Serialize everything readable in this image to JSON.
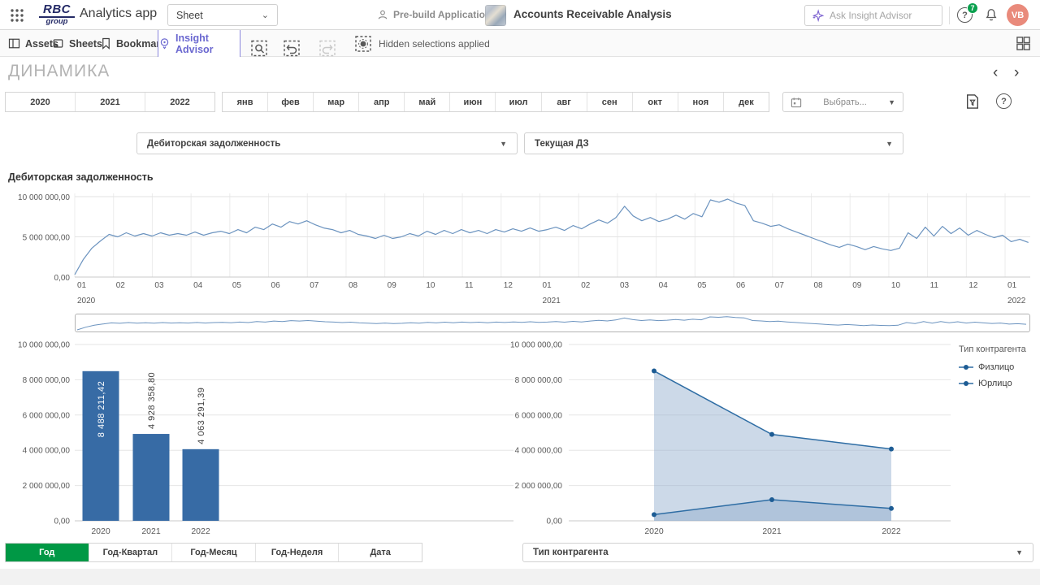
{
  "topbar": {
    "logo_line1": "RBC",
    "logo_line2": "group",
    "app_title": "Analytics app",
    "sheet_selector": "Sheet",
    "prebuild_label": "Pre-build Applications",
    "doc_title": "Accounts Receivable Analysis",
    "more_label": "⋯",
    "ask_placeholder": "Ask Insight Advisor",
    "help_badge": "7",
    "help_label": "?",
    "avatar_initials": "VB"
  },
  "toolbar": {
    "assets": "Assets",
    "sheets": "Sheets",
    "bookmarks": "Bookmarks",
    "insight_advisor": "Insight Advisor",
    "hidden_selections": "Hidden selections applied"
  },
  "sheet": {
    "title": "ДИНАМИКА",
    "years": [
      "2020",
      "2021",
      "2022"
    ],
    "months": [
      "янв",
      "фев",
      "мар",
      "апр",
      "май",
      "июн",
      "июл",
      "авг",
      "сен",
      "окт",
      "ноя",
      "дек"
    ],
    "date_select_label": "Выбрать...",
    "measure_select": "Дебиторская задолженность",
    "measure_select2": "Текущая ДЗ",
    "dimension_tabs": [
      "Год",
      "Год-Квартал",
      "Год-Месяц",
      "Год-Неделя",
      "Дата"
    ],
    "active_tab": "Год",
    "counterparty_select": "Тип контрагента"
  },
  "colors": {
    "accent_green": "#009845",
    "advisor_purple": "#6b68d0",
    "line_blue": "#6b93bf",
    "bar_blue": "#376ba5",
    "area_line_blue": "#2e6da4",
    "area_fill_blue": "#8daacb",
    "avatar_salmon": "#e98a7b",
    "badge_green": "#0aa04e"
  },
  "chart_data": [
    {
      "id": "receivables-daily",
      "type": "line",
      "title": "Дебиторская задолженность",
      "ylabel": "",
      "xlabel": "",
      "ylim": [
        0,
        10000000
      ],
      "grid": true,
      "y_ticks": [
        "0,00",
        "5 000 000,00",
        "10 000 000,00"
      ],
      "x_tick_labels": [
        "01",
        "02",
        "03",
        "04",
        "05",
        "06",
        "07",
        "08",
        "09",
        "10",
        "11",
        "12",
        "01",
        "02",
        "03",
        "04",
        "05",
        "06",
        "07",
        "08",
        "09",
        "10",
        "11",
        "12",
        "01"
      ],
      "year_labels": [
        {
          "label": "2020",
          "month": 0
        },
        {
          "label": "2021",
          "month": 12
        },
        {
          "label": "2022",
          "month": 24
        }
      ],
      "x_months_total": 24.6,
      "values_millions": [
        0.3,
        2.2,
        3.6,
        4.5,
        5.3,
        5.0,
        5.5,
        5.1,
        5.4,
        5.1,
        5.5,
        5.2,
        5.4,
        5.2,
        5.6,
        5.2,
        5.5,
        5.7,
        5.4,
        5.9,
        5.5,
        6.2,
        5.9,
        6.6,
        6.2,
        6.9,
        6.6,
        7.0,
        6.5,
        6.1,
        5.9,
        5.5,
        5.8,
        5.3,
        5.1,
        4.8,
        5.2,
        4.8,
        5.0,
        5.4,
        5.1,
        5.7,
        5.3,
        5.8,
        5.4,
        5.9,
        5.5,
        5.8,
        5.4,
        5.9,
        5.6,
        6.0,
        5.7,
        6.1,
        5.7,
        5.9,
        6.2,
        5.8,
        6.4,
        6.0,
        6.6,
        7.1,
        6.7,
        7.4,
        8.8,
        7.6,
        7.0,
        7.4,
        6.9,
        7.2,
        7.7,
        7.2,
        7.9,
        7.5,
        9.6,
        9.3,
        9.7,
        9.2,
        8.9,
        7.0,
        6.7,
        6.3,
        6.5,
        6.0,
        5.6,
        5.2,
        4.8,
        4.4,
        4.0,
        3.7,
        4.1,
        3.8,
        3.4,
        3.8,
        3.5,
        3.3,
        3.6,
        5.5,
        4.8,
        6.2,
        5.1,
        6.3,
        5.4,
        6.1,
        5.2,
        5.8,
        5.3,
        4.9,
        5.2,
        4.4,
        4.7,
        4.3
      ]
    },
    {
      "id": "receivables-by-year",
      "type": "bar",
      "categories": [
        "2020",
        "2021",
        "2022"
      ],
      "values": [
        8488211.42,
        4928358.8,
        4063291.39
      ],
      "value_labels": [
        "8 488 211,42",
        "4 928 358,80",
        "4 063 291,39"
      ],
      "y_ticks": [
        "0,00",
        "2 000 000,00",
        "4 000 000,00",
        "6 000 000,00",
        "8 000 000,00",
        "10 000 000,00"
      ],
      "ylim": [
        0,
        10000000
      ],
      "grid": true
    },
    {
      "id": "receivables-by-counterparty",
      "type": "area",
      "categories": [
        "2020",
        "2021",
        "2022"
      ],
      "series": [
        {
          "name": "Физлицо",
          "values": [
            350000,
            1200000,
            700000
          ]
        },
        {
          "name": "Юрлицо",
          "values": [
            8500000,
            4900000,
            4070000
          ]
        }
      ],
      "legend_title": "Тип контрагента",
      "legend_position": "right",
      "y_ticks": [
        "0,00",
        "2 000 000,00",
        "4 000 000,00",
        "6 000 000,00",
        "8 000 000,00",
        "10 000 000,00"
      ],
      "ylim": [
        0,
        10000000
      ],
      "grid": true
    }
  ]
}
